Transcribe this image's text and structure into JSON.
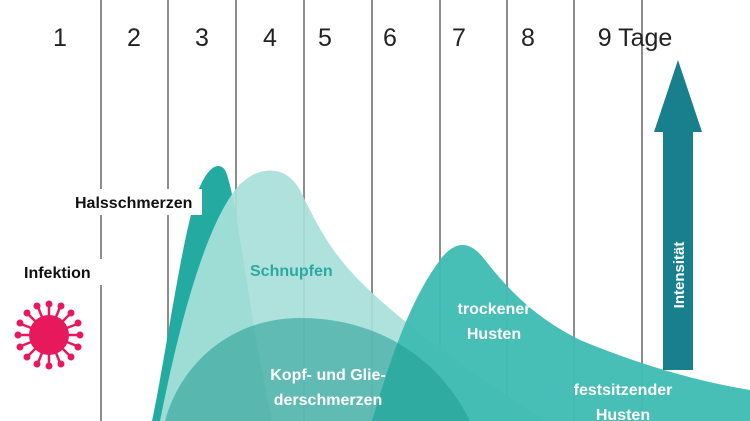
{
  "days": [
    "1",
    "2",
    "3",
    "4",
    "5",
    "6",
    "7",
    "8",
    "9 Tage"
  ],
  "labels": {
    "infection": "Infektion",
    "sore_throat": "Halsschmerzen",
    "cold": "Schnupfen",
    "aches_line1": "Kopf- und Glie-",
    "aches_line2": "derschmerzen",
    "dry_cough_line1": "trockener",
    "dry_cough_line2": "Husten",
    "wet_cough_line1": "festsitzender",
    "wet_cough_line2": "Husten",
    "intensity": "Intensität"
  },
  "colors": {
    "dark_teal": "#23aba2",
    "mid_teal": "#3fbcb3",
    "light_teal": "#a9e0da",
    "deep_teal": "#1f9b91",
    "arrow": "#17808c",
    "grid": "#8c8c8c",
    "virus": "#e8185c"
  },
  "icons": {
    "virus": "virus-icon",
    "arrow": "up-arrow-icon"
  }
}
